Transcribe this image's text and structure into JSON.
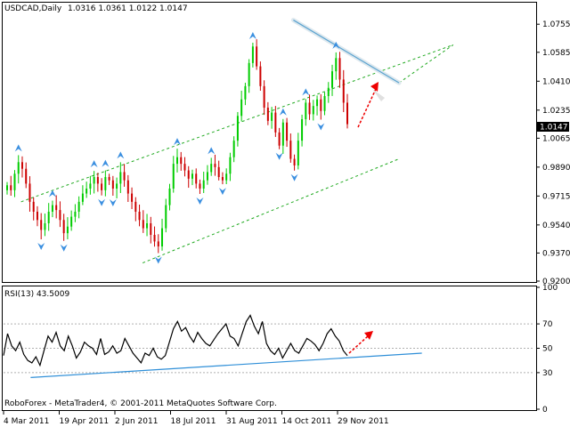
{
  "chart_data": [
    {
      "type": "candlestick",
      "title": "USDCAD,Daily",
      "ohlc_label": "1.0316 1.0361 1.0122 1.0147",
      "last_price_label": "1.0147",
      "ylim": [
        0.92,
        1.088
      ],
      "y_ticks": [
        "1.0755",
        "1.0585",
        "1.0410",
        "1.0235",
        "1.0065",
        "0.9890",
        "0.9715",
        "0.9540",
        "0.9370",
        "0.9200"
      ],
      "y_tick_values": [
        1.0755,
        1.0585,
        1.041,
        1.0235,
        1.0065,
        0.989,
        0.9715,
        0.954,
        0.937,
        0.92
      ],
      "close_path": [
        0.978,
        0.975,
        0.985,
        0.992,
        0.988,
        0.979,
        0.968,
        0.962,
        0.957,
        0.951,
        0.955,
        0.962,
        0.966,
        0.963,
        0.957,
        0.949,
        0.953,
        0.959,
        0.962,
        0.968,
        0.973,
        0.976,
        0.979,
        0.983,
        0.979,
        0.975,
        0.983,
        0.981,
        0.976,
        0.979,
        0.986,
        0.981,
        0.973,
        0.968,
        0.962,
        0.957,
        0.952,
        0.955,
        0.948,
        0.944,
        0.941,
        0.952,
        0.966,
        0.976,
        0.991,
        0.995,
        0.991,
        0.987,
        0.982,
        0.985,
        0.979,
        0.976,
        0.981,
        0.986,
        0.991,
        0.989,
        0.983,
        0.981,
        0.985,
        0.995,
        1.005,
        1.02,
        1.03,
        1.038,
        1.052,
        1.062,
        1.05,
        1.038,
        1.025,
        1.017,
        1.022,
        1.01,
        1.002,
        1.016,
        1.005,
        0.994,
        0.99,
        1.005,
        1.018,
        1.028,
        1.021,
        1.026,
        1.03,
        1.023,
        1.032,
        1.037,
        1.047,
        1.055,
        1.042,
        1.028,
        1.015
      ],
      "resistance_line": [
        [
          0.546,
          1.078
        ],
        [
          0.745,
          1.04
        ]
      ],
      "channel_upper": [
        [
          0.033,
          0.968
        ],
        [
          0.847,
          1.063
        ]
      ],
      "channel_lower": [
        [
          0.262,
          0.931
        ],
        [
          0.745,
          0.994
        ]
      ],
      "channel_extension": [
        [
          0.745,
          1.04
        ],
        [
          0.847,
          1.063
        ]
      ]
    },
    {
      "type": "line",
      "title": "RSI(13) 43.5009",
      "ylim": [
        0,
        100
      ],
      "y_ticks": [
        "100",
        "70",
        "50",
        "30",
        "0"
      ],
      "y_tick_values": [
        100,
        70,
        50,
        30,
        0
      ],
      "levels": [
        70,
        50,
        30
      ],
      "rsi_path": [
        44,
        62,
        52,
        48,
        55,
        45,
        40,
        38,
        43,
        36,
        48,
        60,
        55,
        63,
        52,
        48,
        60,
        52,
        42,
        47,
        55,
        52,
        50,
        45,
        58,
        45,
        47,
        52,
        46,
        48,
        58,
        52,
        46,
        42,
        38,
        46,
        44,
        50,
        43,
        41,
        44,
        55,
        66,
        72,
        64,
        67,
        60,
        55,
        63,
        58,
        54,
        52,
        57,
        62,
        66,
        70,
        60,
        58,
        52,
        62,
        72,
        77,
        68,
        62,
        72,
        54,
        48,
        45,
        50,
        42,
        48,
        54,
        48,
        46,
        52,
        58,
        56,
        53,
        48,
        54,
        62,
        66,
        60,
        56,
        48,
        44
      ],
      "trend_line": [
        [
          0.051,
          26
        ],
        [
          0.788,
          46
        ]
      ],
      "footer": "RoboForex - MetaTrader4, © 2001-2011 MetaQuotes Software Corp.",
      "x_labels": [
        "4 Mar 2011",
        "19 Apr 2011",
        "2 Jun 2011",
        "18 Jul 2011",
        "31 Aug 2011",
        "14 Oct 2011",
        "29 Nov 2011"
      ]
    }
  ],
  "colors": {
    "bull": "#00cc00",
    "bear": "#cc0000",
    "channel": "#22aa22",
    "resistance": "#5ba3d0",
    "rsi": "#000000",
    "rsi_trend": "#2f8fd8",
    "arrow": "#ee0000",
    "fractal": "#3a8fe0"
  }
}
